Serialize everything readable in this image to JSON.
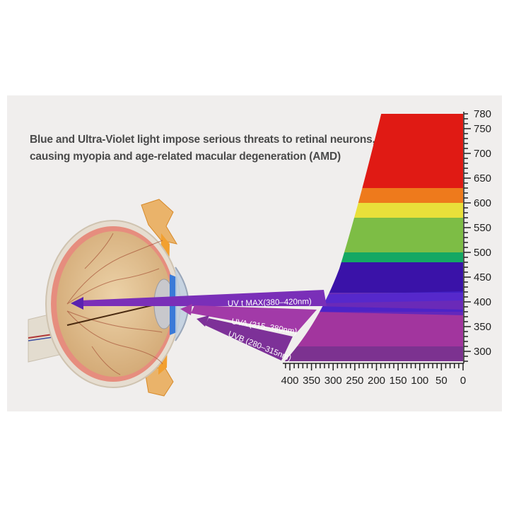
{
  "headline": {
    "line1": "Blue and Ultra-Violet light impose serious threats to retinal neurons,",
    "line2": "causing myopia and age-related macular degeneration (AMD)"
  },
  "beams": [
    {
      "label": "UV t MAX(380–420nm)",
      "color": "#7a2fb8"
    },
    {
      "label": "UVA (315–380nm)",
      "color": "#a23aa8"
    },
    {
      "label": "UVB (280–315nm)",
      "color": "#7d3198"
    }
  ],
  "spectrum_axis": {
    "wavelength_labels": [
      "780",
      "750",
      "700",
      "650",
      "600",
      "550",
      "500",
      "450",
      "400",
      "350",
      "300"
    ],
    "intensity_labels": [
      "400",
      "350",
      "300",
      "250",
      "200",
      "150",
      "100",
      "50",
      "0"
    ]
  },
  "spectrum_bands": [
    {
      "name": "red",
      "from": 630,
      "to": 780,
      "color": "#e01a14"
    },
    {
      "name": "orange",
      "from": 600,
      "to": 630,
      "color": "#ee7a1c"
    },
    {
      "name": "yellow",
      "from": 570,
      "to": 600,
      "color": "#e9e03a"
    },
    {
      "name": "green",
      "from": 500,
      "to": 570,
      "color": "#7dbd45"
    },
    {
      "name": "dark-green",
      "from": 480,
      "to": 500,
      "color": "#14a864"
    },
    {
      "name": "blue-violet",
      "from": 418,
      "to": 480,
      "color": "#3a12a8"
    },
    {
      "name": "violet-mix",
      "from": 380,
      "to": 418,
      "color": "#6a2ab8"
    },
    {
      "name": "magenta",
      "from": 310,
      "to": 380,
      "color": "#a2359e"
    },
    {
      "name": "purple",
      "from": 280,
      "to": 310,
      "color": "#7c3290"
    }
  ]
}
